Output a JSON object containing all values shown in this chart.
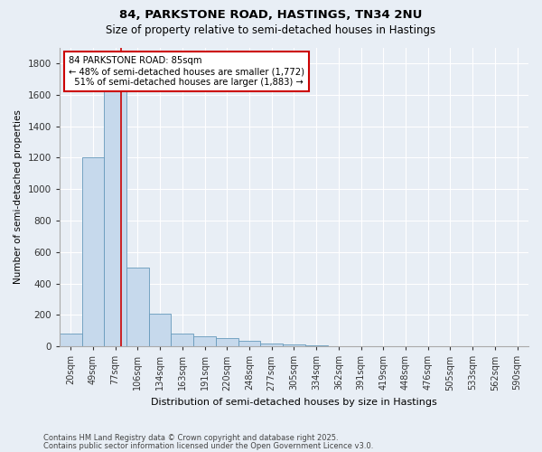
{
  "title1": "84, PARKSTONE ROAD, HASTINGS, TN34 2NU",
  "title2": "Size of property relative to semi-detached houses in Hastings",
  "xlabel": "Distribution of semi-detached houses by size in Hastings",
  "ylabel": "Number of semi-detached properties",
  "categories": [
    "20sqm",
    "49sqm",
    "77sqm",
    "106sqm",
    "134sqm",
    "163sqm",
    "191sqm",
    "220sqm",
    "248sqm",
    "277sqm",
    "305sqm",
    "334sqm",
    "362sqm",
    "391sqm",
    "419sqm",
    "448sqm",
    "476sqm",
    "505sqm",
    "533sqm",
    "562sqm",
    "590sqm"
  ],
  "values": [
    80,
    1200,
    1650,
    500,
    210,
    80,
    65,
    50,
    35,
    20,
    15,
    5,
    2,
    0,
    0,
    0,
    0,
    0,
    0,
    0,
    0
  ],
  "bar_color": "#c6d9ec",
  "bar_edge_color": "#6699bb",
  "background_color": "#e8eef5",
  "grid_color": "#ffffff",
  "red_line_x": 2.27,
  "annotation_text": "84 PARKSTONE ROAD: 85sqm\n← 48% of semi-detached houses are smaller (1,772)\n  51% of semi-detached houses are larger (1,883) →",
  "annotation_box_color": "#ffffff",
  "annotation_edge_color": "#cc0000",
  "footnote1": "Contains HM Land Registry data © Crown copyright and database right 2025.",
  "footnote2": "Contains public sector information licensed under the Open Government Licence v3.0.",
  "ylim": [
    0,
    1900
  ],
  "yticks": [
    0,
    200,
    400,
    600,
    800,
    1000,
    1200,
    1400,
    1600,
    1800
  ]
}
